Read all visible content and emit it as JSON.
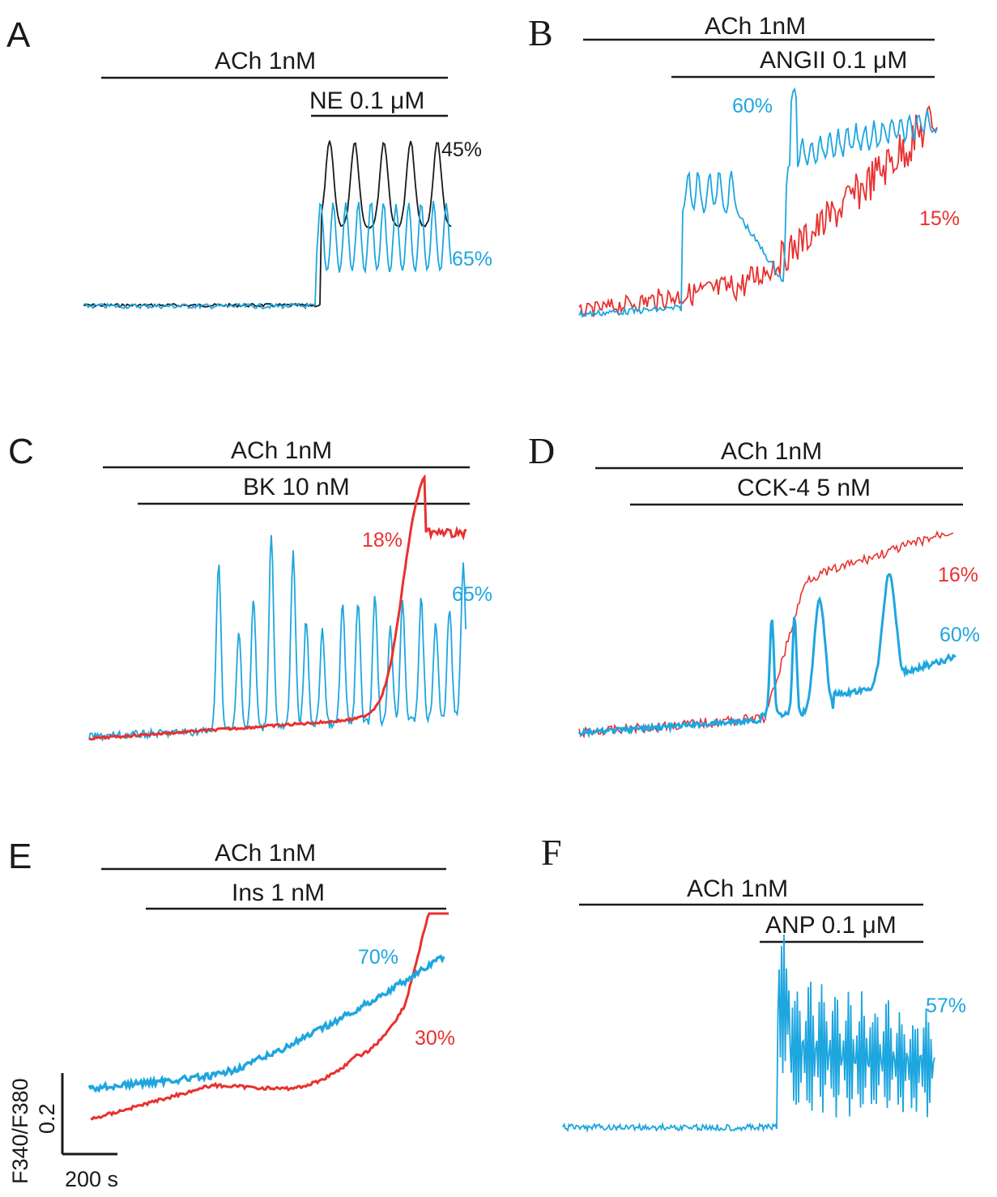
{
  "figure": {
    "colors": {
      "blue": "#1ea6df",
      "red": "#e8312f",
      "black": "#1a1a1a"
    },
    "scale_bar": {
      "y_label": "F340/F380",
      "y_value": "0.2",
      "x_value": "200 s"
    }
  },
  "chart_data": [
    {
      "panel": "A",
      "type": "line",
      "title": "",
      "bars": [
        {
          "label": "ACh 1nM"
        },
        {
          "label": "NE 0.1 μM"
        }
      ],
      "series": [
        {
          "name": "black trace",
          "color": "#1a1a1a",
          "label": "45%",
          "pattern": "step-oscillation",
          "start": 0.02,
          "stimulus": 0.58,
          "level": 0.17,
          "peaks": 5,
          "amp": 0.7
        },
        {
          "name": "blue trace",
          "color": "#1ea6df",
          "label": "65%",
          "pattern": "step-oscillation",
          "start": 0.02,
          "stimulus": 0.58,
          "level": 0.12,
          "peaks": 11,
          "amp": 0.45
        }
      ]
    },
    {
      "panel": "B",
      "type": "line",
      "bars": [
        {
          "label": "ACh 1nM"
        },
        {
          "label": "ANGII 0.1 μM"
        }
      ],
      "series": [
        {
          "name": "blue trace",
          "color": "#1ea6df",
          "label": "60%",
          "pattern": "two-phase"
        },
        {
          "name": "red trace",
          "color": "#e8312f",
          "label": "15%",
          "pattern": "noisy-ramp"
        }
      ]
    },
    {
      "panel": "C",
      "type": "line",
      "bars": [
        {
          "label": "ACh 1nM"
        },
        {
          "label": "BK 10 nM"
        }
      ],
      "series": [
        {
          "name": "red trace",
          "color": "#e8312f",
          "label": "18%",
          "pattern": "sigmoid-rise"
        },
        {
          "name": "blue trace",
          "color": "#1ea6df",
          "label": "65%",
          "pattern": "spike-train"
        }
      ]
    },
    {
      "panel": "D",
      "type": "line",
      "bars": [
        {
          "label": "ACh 1nM"
        },
        {
          "label": "CCK-4 5 nM"
        }
      ],
      "series": [
        {
          "name": "red trace",
          "color": "#e8312f",
          "label": "16%",
          "pattern": "step-ramp"
        },
        {
          "name": "blue trace",
          "color": "#1ea6df",
          "label": "60%",
          "pattern": "transients"
        }
      ]
    },
    {
      "panel": "E",
      "type": "line",
      "bars": [
        {
          "label": "ACh 1nM"
        },
        {
          "label": "Ins 1 nM"
        }
      ],
      "series": [
        {
          "name": "blue trace",
          "color": "#1ea6df",
          "label": "70%",
          "pattern": "gradual-rise"
        },
        {
          "name": "red trace",
          "color": "#e8312f",
          "label": "30%",
          "pattern": "late-rise"
        }
      ]
    },
    {
      "panel": "F",
      "type": "line",
      "bars": [
        {
          "label": "ACh 1nM"
        },
        {
          "label": "ANP 0.1 μM"
        }
      ],
      "series": [
        {
          "name": "blue trace",
          "color": "#1ea6df",
          "label": "57%",
          "pattern": "burst-oscillation"
        }
      ]
    }
  ]
}
